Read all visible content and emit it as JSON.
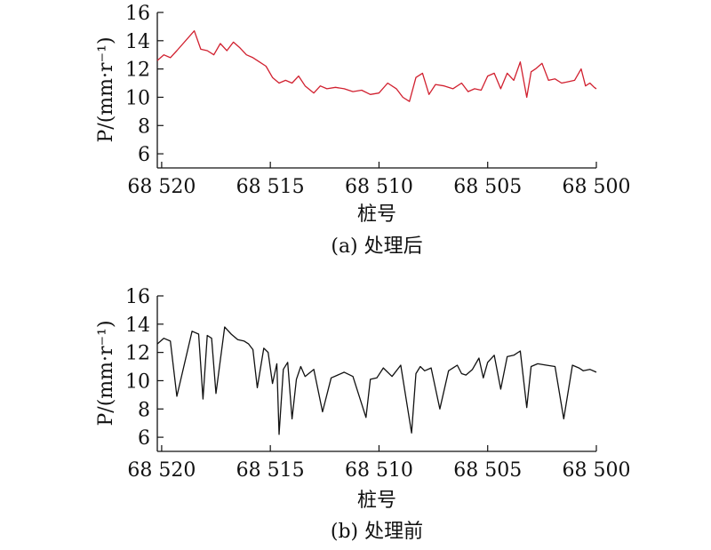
{
  "chart_data": [
    {
      "type": "line",
      "color": "#d1202f",
      "caption": "(a) 处理后",
      "xlabel": "桩号",
      "ylabel": "P/(mm·r⁻¹)",
      "xlim": [
        68520.2,
        68500
      ],
      "ylim": [
        5,
        16
      ],
      "x_ticks": [
        68520,
        68515,
        68510,
        68505,
        68500
      ],
      "x_tick_labels": [
        "68 520",
        "68 515",
        "68 510",
        "68 505",
        "68 500"
      ],
      "y_ticks": [
        6,
        8,
        10,
        12,
        14,
        16
      ],
      "grid": false,
      "series": [
        {
          "x": [
            68520.2,
            68519.9,
            68519.6,
            68519.3,
            68518.5,
            68518.2,
            68517.9,
            68517.6,
            68517.3,
            68517.0,
            68516.7,
            68516.4,
            68516.1,
            68515.8,
            68515.5,
            68515.2,
            68514.9,
            68514.6,
            68514.3,
            68514.0,
            68513.7,
            68513.4,
            68513.0,
            68512.7,
            68512.4,
            68512.0,
            68511.6,
            68511.2,
            68510.8,
            68510.4,
            68510.0,
            68509.6,
            68509.2,
            68508.9,
            68508.6,
            68508.3,
            68508.0,
            68507.7,
            68507.4,
            68507.0,
            68506.6,
            68506.2,
            68505.9,
            68505.6,
            68505.3,
            68505.0,
            68504.7,
            68504.4,
            68504.1,
            68503.8,
            68503.5,
            68503.2,
            68503.0,
            68502.8,
            68502.5,
            68502.2,
            68501.9,
            68501.6,
            68501.3,
            68501.0,
            68500.7,
            68500.5,
            68500.3,
            68500.1,
            68500.0
          ],
          "y": [
            12.6,
            13.0,
            12.8,
            13.3,
            14.7,
            13.4,
            13.3,
            13.0,
            13.8,
            13.3,
            13.9,
            13.5,
            13.0,
            12.8,
            12.5,
            12.2,
            11.4,
            11.0,
            11.2,
            11.0,
            11.5,
            10.8,
            10.3,
            10.8,
            10.6,
            10.7,
            10.6,
            10.4,
            10.5,
            10.2,
            10.3,
            11.0,
            10.6,
            10.0,
            9.7,
            11.4,
            11.7,
            10.2,
            10.9,
            10.8,
            10.6,
            11.0,
            10.4,
            10.6,
            10.5,
            11.5,
            11.7,
            10.6,
            11.7,
            11.2,
            12.5,
            10.0,
            11.8,
            12.0,
            12.4,
            11.2,
            11.3,
            11.0,
            11.1,
            11.2,
            12.0,
            10.8,
            11.0,
            10.7,
            10.6
          ]
        }
      ]
    },
    {
      "type": "line",
      "color": "#111111",
      "caption": "(b) 处理前",
      "xlabel": "桩号",
      "ylabel": "P/(mm·r⁻¹)",
      "xlim": [
        68520.2,
        68500
      ],
      "ylim": [
        5,
        16
      ],
      "x_ticks": [
        68520,
        68515,
        68510,
        68505,
        68500
      ],
      "x_tick_labels": [
        "68 520",
        "68 515",
        "68 510",
        "68 505",
        "68 500"
      ],
      "y_ticks": [
        6,
        8,
        10,
        12,
        14,
        16
      ],
      "grid": false,
      "series": [
        {
          "x": [
            68520.2,
            68519.9,
            68519.6,
            68519.3,
            68518.6,
            68518.3,
            68518.1,
            68517.9,
            68517.7,
            68517.5,
            68517.1,
            68516.8,
            68516.5,
            68516.2,
            68516.0,
            68515.8,
            68515.6,
            68515.3,
            68515.1,
            68514.9,
            68514.7,
            68514.6,
            68514.4,
            68514.2,
            68514.0,
            68513.8,
            68513.6,
            68513.4,
            68513.0,
            68512.6,
            68512.2,
            68511.9,
            68511.6,
            68511.2,
            68510.6,
            68510.4,
            68510.1,
            68509.8,
            68509.4,
            68509.0,
            68508.5,
            68508.3,
            68508.1,
            68507.9,
            68507.6,
            68507.2,
            68506.8,
            68506.4,
            68506.2,
            68506.0,
            68505.7,
            68505.4,
            68505.2,
            68505.0,
            68504.7,
            68504.4,
            68504.1,
            68503.8,
            68503.5,
            68503.2,
            68503.0,
            68502.7,
            68502.3,
            68501.9,
            68501.5,
            68501.1,
            68500.8,
            68500.6,
            68500.3,
            68500.0
          ],
          "y": [
            12.6,
            13.0,
            12.8,
            8.9,
            13.5,
            13.3,
            8.7,
            13.2,
            13.0,
            9.1,
            13.8,
            13.3,
            12.9,
            12.8,
            12.6,
            12.2,
            9.5,
            12.3,
            12.0,
            9.8,
            11.2,
            6.2,
            10.8,
            11.3,
            7.3,
            10.1,
            11.0,
            10.3,
            10.8,
            7.8,
            10.2,
            10.4,
            10.6,
            10.3,
            7.4,
            10.1,
            10.2,
            10.9,
            10.3,
            11.1,
            6.3,
            10.5,
            11.0,
            10.7,
            10.9,
            8.0,
            10.7,
            11.1,
            10.5,
            10.4,
            10.8,
            11.6,
            10.2,
            11.3,
            11.8,
            9.4,
            11.7,
            11.8,
            12.1,
            8.1,
            11.0,
            11.2,
            11.1,
            11.0,
            7.3,
            11.1,
            10.9,
            10.7,
            10.8,
            10.6
          ]
        }
      ]
    }
  ]
}
